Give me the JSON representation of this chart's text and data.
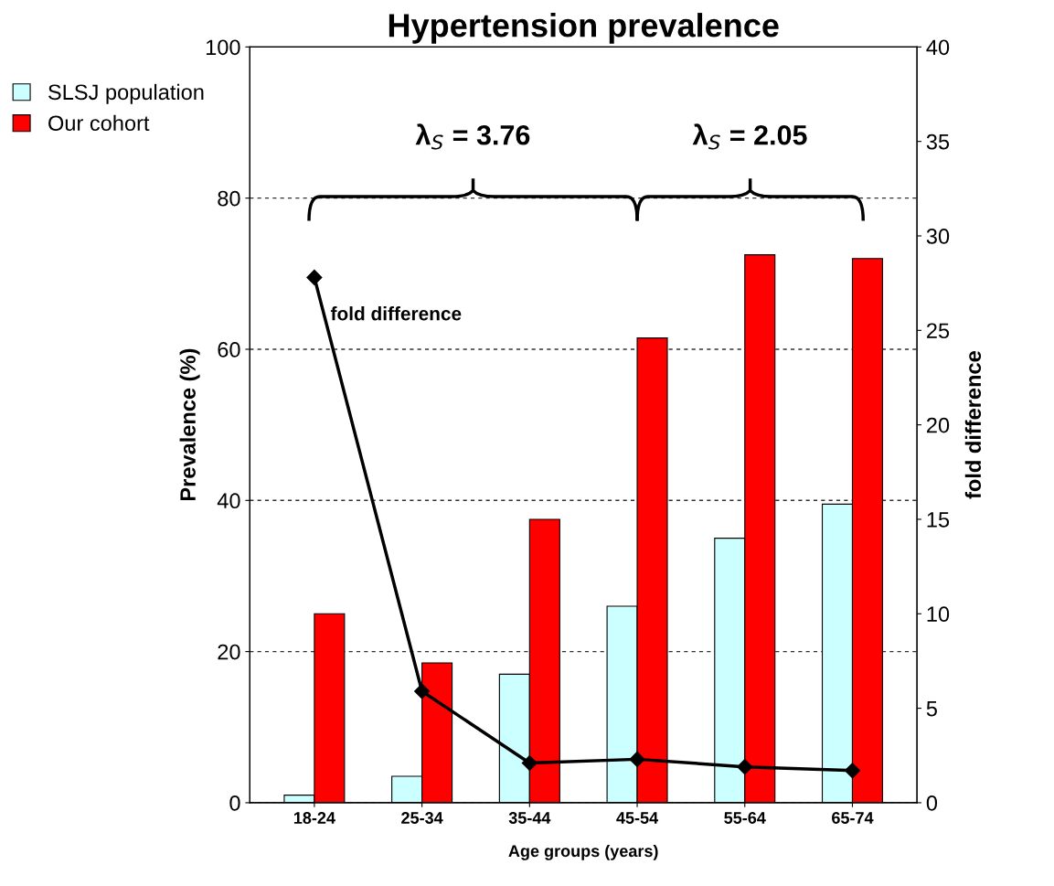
{
  "chart_data": {
    "type": "bar",
    "title": "Hypertension prevalence",
    "xlabel": "Age groups (years)",
    "ylabel": "Prevalence (%)",
    "y2label": "fold difference",
    "categories": [
      "18-24",
      "25-34",
      "35-44",
      "45-54",
      "55-64",
      "65-74"
    ],
    "series": [
      {
        "name": "SLSJ population",
        "color": "#ccffff",
        "values": [
          1,
          3.5,
          17,
          26,
          35,
          39.5
        ]
      },
      {
        "name": "Our cohort",
        "color": "#ff0000",
        "values": [
          25,
          18.5,
          37.5,
          61.5,
          72.5,
          72
        ]
      },
      {
        "name": "fold difference",
        "type": "line",
        "axis": "y2",
        "color": "#000000",
        "marker": "diamond",
        "line_style": "solid",
        "values": [
          27.8,
          5.9,
          2.1,
          2.3,
          1.9,
          1.7
        ]
      }
    ],
    "ylim": [
      0,
      100
    ],
    "yticks": [
      0,
      20,
      40,
      60,
      80,
      100
    ],
    "y2lim": [
      0,
      40
    ],
    "y2ticks": [
      0,
      5,
      10,
      15,
      20,
      25,
      30,
      35,
      40
    ],
    "annotations": [
      "λ$_{S}$ = 3.76",
      "λ$_{S}$ = 2.05"
    ],
    "grid": "y",
    "legend": "top left"
  }
}
